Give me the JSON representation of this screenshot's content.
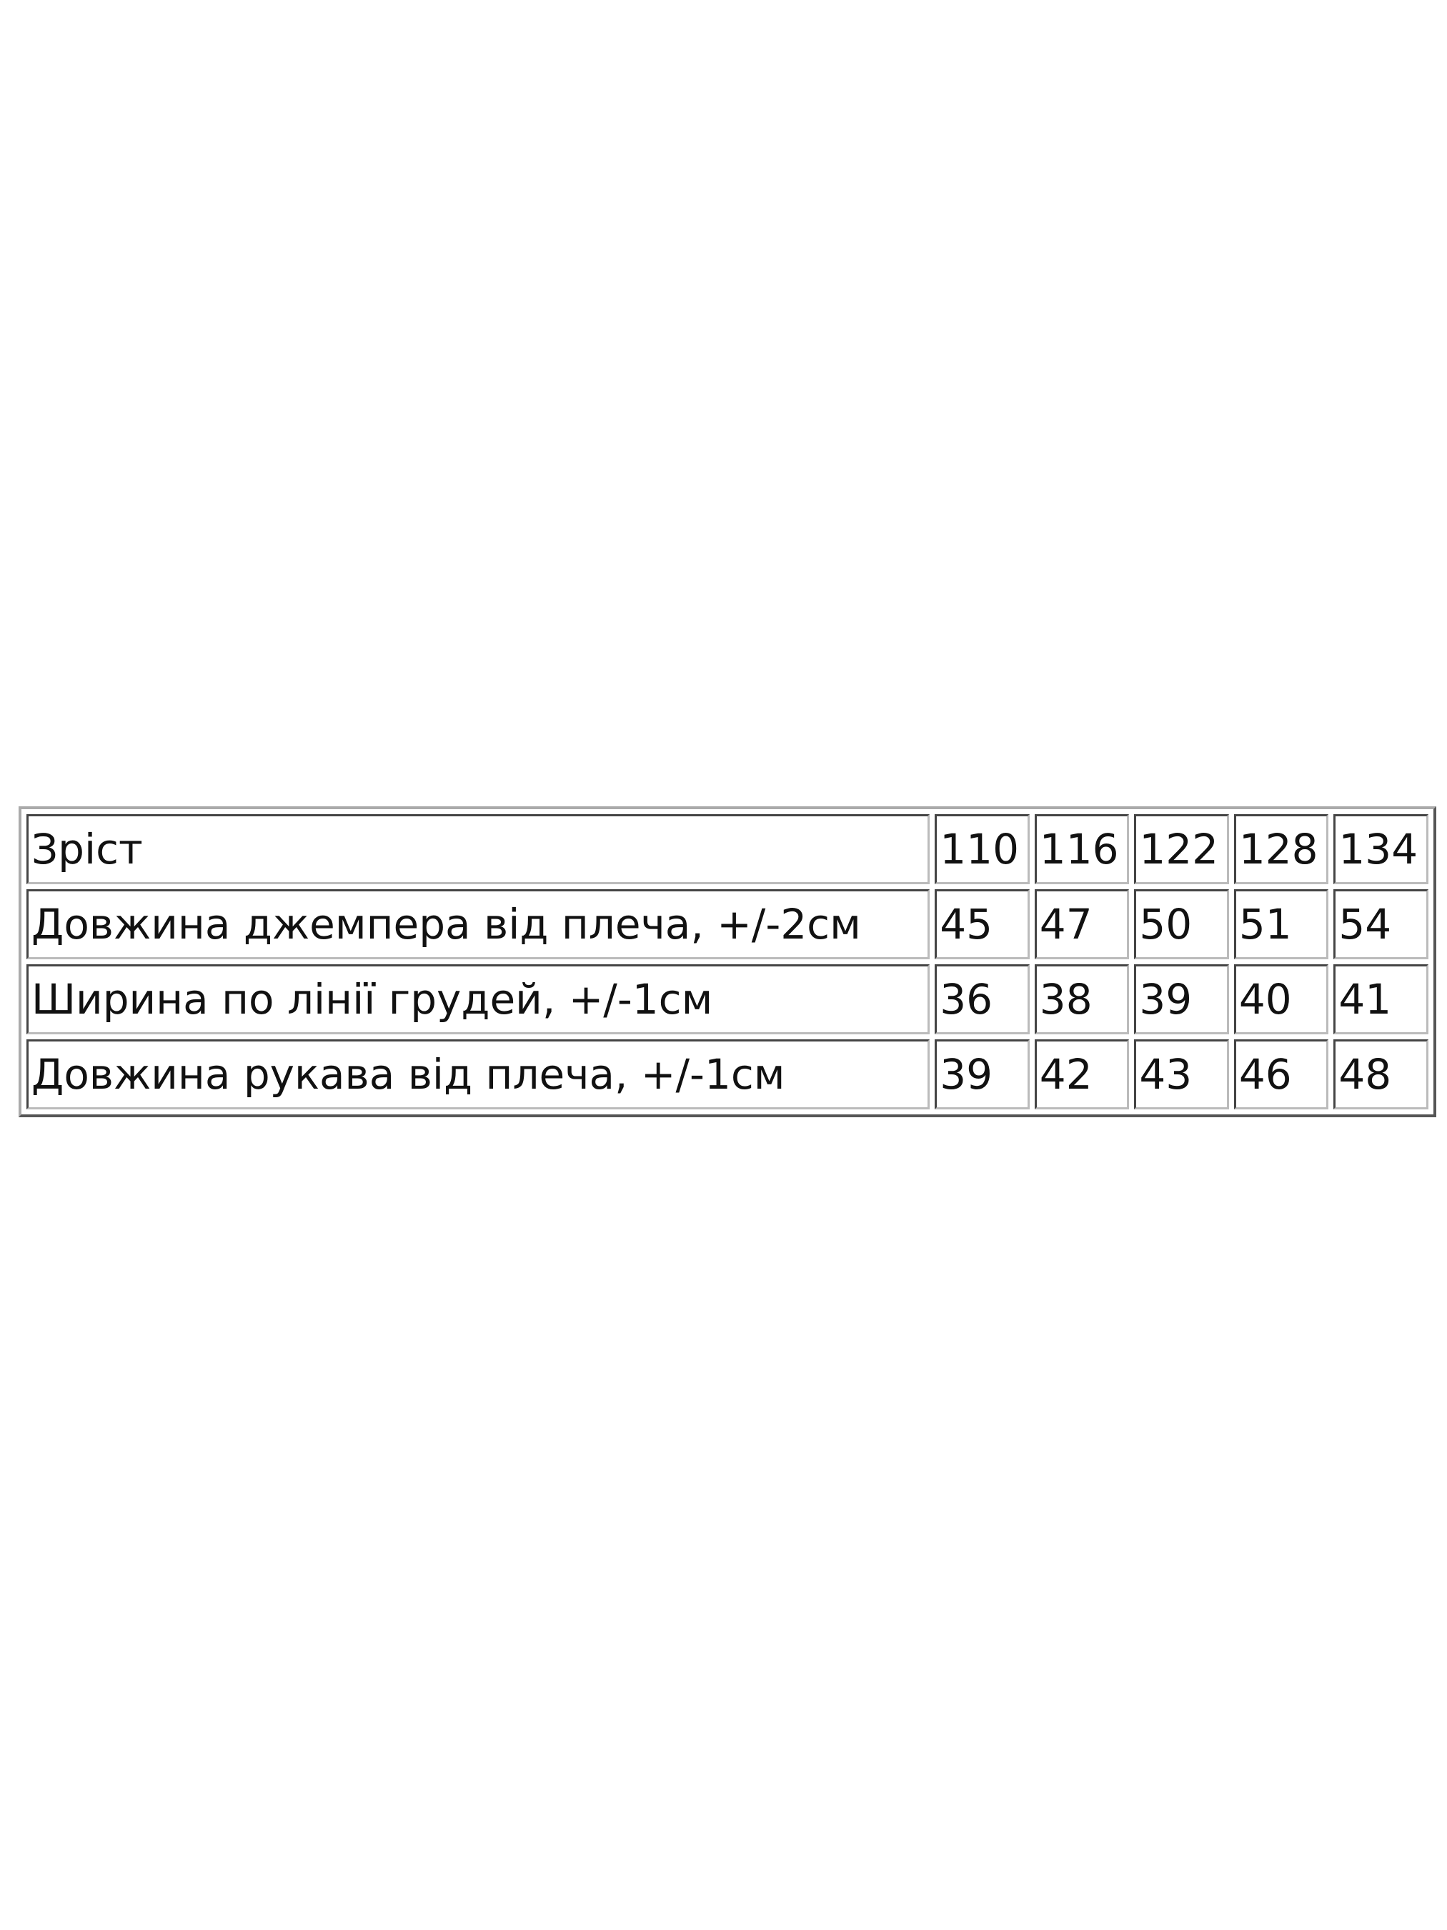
{
  "size_table": {
    "rows": [
      {
        "label": "Зріст",
        "values": [
          "110",
          "116",
          "122",
          "128",
          "134"
        ]
      },
      {
        "label": "Довжина джемпера від плеча, +/-2см",
        "values": [
          "45",
          "47",
          "50",
          "51",
          "54"
        ]
      },
      {
        "label": "Ширина по лінії грудей, +/-1см",
        "values": [
          "36",
          "38",
          "39",
          "40",
          "41"
        ]
      },
      {
        "label": "Довжина рукава від плеча, +/-1см",
        "values": [
          "39",
          "42",
          "43",
          "46",
          "48"
        ]
      }
    ]
  }
}
